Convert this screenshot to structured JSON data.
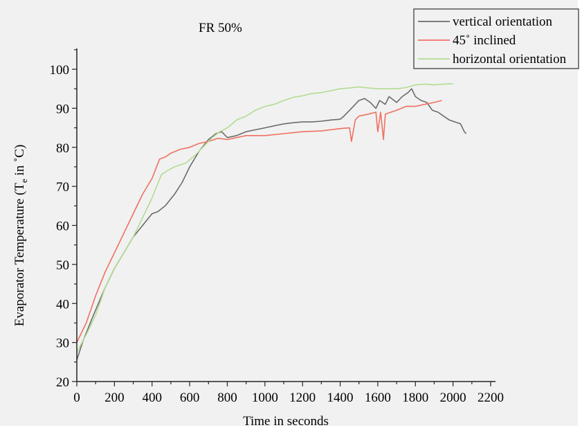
{
  "chart_data": {
    "type": "line",
    "title": "FR 50%",
    "xlabel": "Time in seconds",
    "ylabel": {
      "main": "Evaporator Temperature (T",
      "sub": "e",
      "rest": " in ˚C)"
    },
    "xlim": [
      0,
      2200
    ],
    "ylim": [
      20,
      100
    ],
    "xticks": [
      0,
      200,
      400,
      600,
      800,
      1000,
      1200,
      1400,
      1600,
      1800,
      2000,
      2200
    ],
    "yticks": [
      20,
      30,
      40,
      50,
      60,
      70,
      80,
      90,
      100
    ],
    "legend_position": "top-right",
    "series": [
      {
        "name": "vertical orientation",
        "color": "#6b6b6b",
        "points": [
          [
            0,
            25.5
          ],
          [
            30,
            30
          ],
          [
            80,
            36
          ],
          [
            150,
            44
          ],
          [
            200,
            49
          ],
          [
            250,
            53
          ],
          [
            300,
            57
          ],
          [
            350,
            60
          ],
          [
            400,
            63
          ],
          [
            430,
            63.5
          ],
          [
            470,
            65
          ],
          [
            520,
            68
          ],
          [
            560,
            71
          ],
          [
            600,
            75
          ],
          [
            650,
            79
          ],
          [
            700,
            82
          ],
          [
            740,
            83.5
          ],
          [
            770,
            84
          ],
          [
            800,
            82.5
          ],
          [
            850,
            83
          ],
          [
            900,
            84
          ],
          [
            950,
            84.5
          ],
          [
            1000,
            85
          ],
          [
            1050,
            85.5
          ],
          [
            1100,
            86
          ],
          [
            1150,
            86.3
          ],
          [
            1200,
            86.5
          ],
          [
            1250,
            86.5
          ],
          [
            1300,
            86.7
          ],
          [
            1350,
            87
          ],
          [
            1400,
            87.2
          ],
          [
            1420,
            88
          ],
          [
            1460,
            90
          ],
          [
            1500,
            92
          ],
          [
            1530,
            92.5
          ],
          [
            1560,
            91.5
          ],
          [
            1590,
            90
          ],
          [
            1610,
            92
          ],
          [
            1640,
            91
          ],
          [
            1660,
            93
          ],
          [
            1700,
            91.5
          ],
          [
            1730,
            93
          ],
          [
            1760,
            94
          ],
          [
            1780,
            95
          ],
          [
            1800,
            93
          ],
          [
            1830,
            92
          ],
          [
            1860,
            91.5
          ],
          [
            1890,
            89.5
          ],
          [
            1920,
            89
          ],
          [
            1950,
            88
          ],
          [
            1980,
            87
          ],
          [
            2010,
            86.5
          ],
          [
            2040,
            86
          ],
          [
            2060,
            84
          ],
          [
            2070,
            83.5
          ]
        ]
      },
      {
        "name": "45˚ inclined",
        "color": "#f07060",
        "points": [
          [
            0,
            30
          ],
          [
            50,
            35
          ],
          [
            100,
            42
          ],
          [
            150,
            48
          ],
          [
            200,
            53
          ],
          [
            250,
            58
          ],
          [
            300,
            63
          ],
          [
            350,
            68
          ],
          [
            400,
            72
          ],
          [
            440,
            77
          ],
          [
            470,
            77.5
          ],
          [
            500,
            78.5
          ],
          [
            550,
            79.5
          ],
          [
            600,
            80
          ],
          [
            650,
            81
          ],
          [
            700,
            81.5
          ],
          [
            750,
            82.3
          ],
          [
            800,
            82
          ],
          [
            850,
            82.5
          ],
          [
            900,
            83
          ],
          [
            1000,
            83
          ],
          [
            1100,
            83.5
          ],
          [
            1200,
            84
          ],
          [
            1300,
            84.2
          ],
          [
            1400,
            84.8
          ],
          [
            1450,
            85
          ],
          [
            1460,
            81.5
          ],
          [
            1480,
            87
          ],
          [
            1500,
            88
          ],
          [
            1550,
            88.5
          ],
          [
            1590,
            89
          ],
          [
            1600,
            84
          ],
          [
            1615,
            89
          ],
          [
            1630,
            82
          ],
          [
            1640,
            88.5
          ],
          [
            1700,
            89.5
          ],
          [
            1750,
            90.5
          ],
          [
            1800,
            90.5
          ],
          [
            1850,
            91
          ],
          [
            1900,
            91.5
          ],
          [
            1940,
            92
          ]
        ]
      },
      {
        "name": "horizontal orientation",
        "color": "#b2dc92",
        "points": [
          [
            0,
            27.5
          ],
          [
            50,
            32
          ],
          [
            100,
            37
          ],
          [
            150,
            44
          ],
          [
            200,
            49
          ],
          [
            250,
            53
          ],
          [
            300,
            57
          ],
          [
            350,
            62
          ],
          [
            400,
            67
          ],
          [
            450,
            73
          ],
          [
            480,
            74
          ],
          [
            520,
            75
          ],
          [
            580,
            76
          ],
          [
            630,
            78
          ],
          [
            680,
            80.5
          ],
          [
            720,
            82.5
          ],
          [
            760,
            84
          ],
          [
            800,
            85
          ],
          [
            850,
            87
          ],
          [
            900,
            88
          ],
          [
            950,
            89.5
          ],
          [
            1000,
            90.5
          ],
          [
            1050,
            91
          ],
          [
            1100,
            92
          ],
          [
            1150,
            92.8
          ],
          [
            1200,
            93.2
          ],
          [
            1250,
            93.8
          ],
          [
            1300,
            94
          ],
          [
            1350,
            94.5
          ],
          [
            1400,
            95
          ],
          [
            1450,
            95.2
          ],
          [
            1500,
            95.5
          ],
          [
            1550,
            95.2
          ],
          [
            1600,
            95
          ],
          [
            1650,
            95
          ],
          [
            1700,
            95
          ],
          [
            1750,
            95.3
          ],
          [
            1800,
            96
          ],
          [
            1850,
            96.2
          ],
          [
            1900,
            96
          ],
          [
            1950,
            96.2
          ],
          [
            2000,
            96.3
          ]
        ]
      }
    ]
  }
}
